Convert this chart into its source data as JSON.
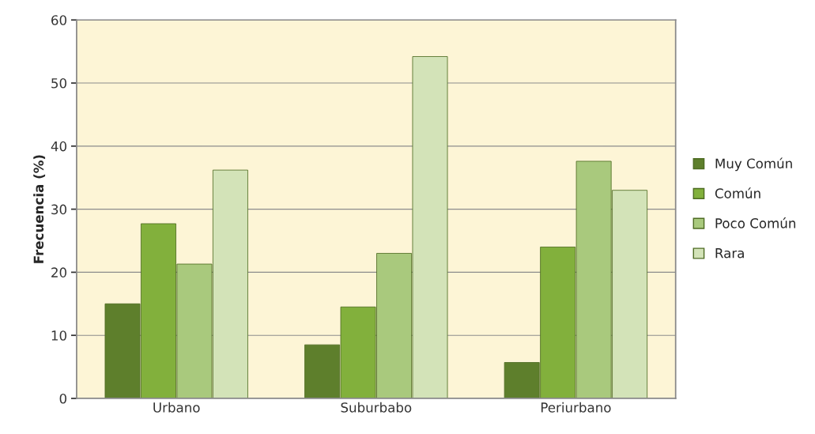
{
  "chart_data": {
    "type": "bar",
    "ylabel": "Frecuencia (%)",
    "categories": [
      "Urbano",
      "Suburbabo",
      "Periurbano"
    ],
    "series": [
      {
        "name": "Muy Común",
        "color": "#5e7f2c",
        "values": [
          15.0,
          8.5,
          5.7
        ]
      },
      {
        "name": "Común",
        "color": "#82b03c",
        "values": [
          27.7,
          14.5,
          24.0
        ]
      },
      {
        "name": "Poco Común",
        "color": "#a9c97d",
        "values": [
          21.3,
          23.0,
          37.6
        ]
      },
      {
        "name": "Rara",
        "color": "#d3e3b8",
        "values": [
          36.2,
          54.2,
          33.0
        ]
      }
    ],
    "ylim": [
      0,
      60
    ],
    "yticks": [
      0,
      10,
      20,
      30,
      40,
      50,
      60
    ],
    "grid": "y",
    "legend": "right"
  }
}
